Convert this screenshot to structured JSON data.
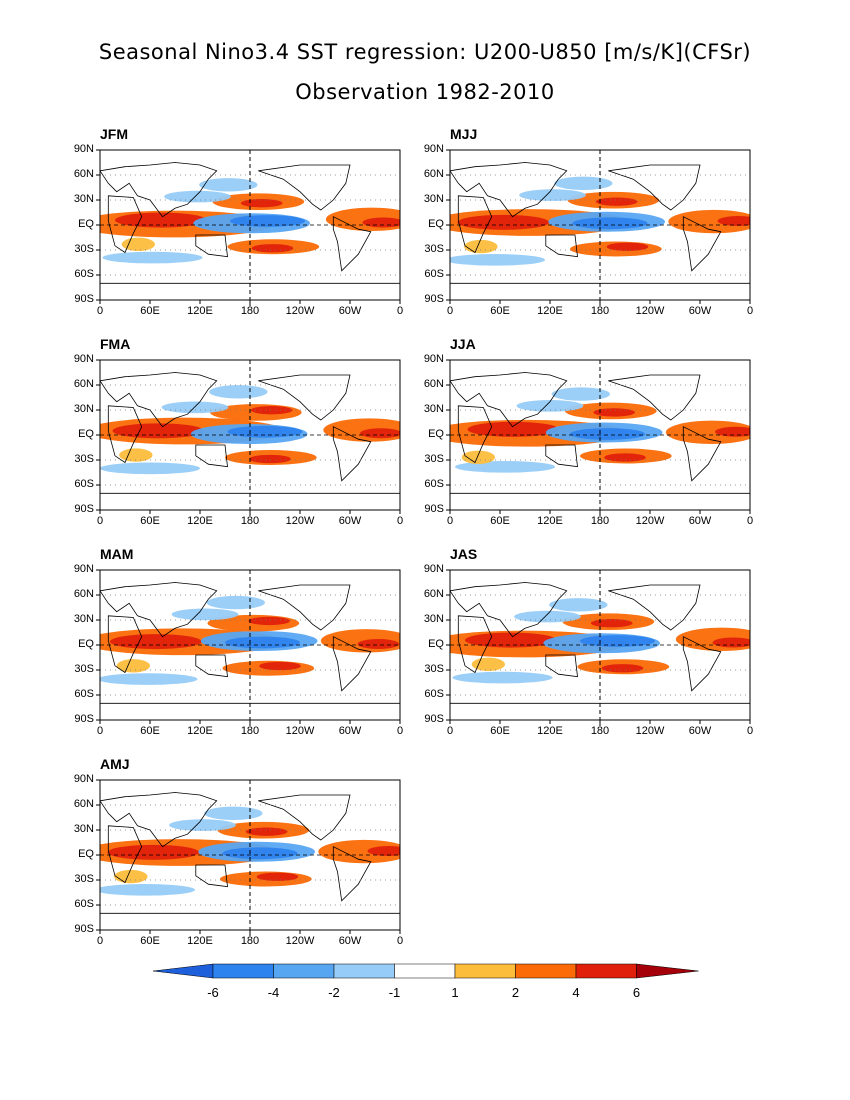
{
  "title_line1": "Seasonal Nino3.4 SST regression: U200-U850 [m/s/K](CFSr)",
  "title_line2": "Observation 1982-2010",
  "chart_data": {
    "type": "heatmap",
    "description_units": "m/s/K",
    "panels": [
      {
        "label": "JFM"
      },
      {
        "label": "MJJ"
      },
      {
        "label": "FMA"
      },
      {
        "label": "JJA"
      },
      {
        "label": "MAM"
      },
      {
        "label": "JAS"
      },
      {
        "label": "AMJ"
      }
    ],
    "lat_ticks": [
      "90N",
      "60N",
      "30N",
      "EQ",
      "30S",
      "60S",
      "90S"
    ],
    "lon_ticks": [
      "0",
      "60E",
      "120E",
      "180",
      "120W",
      "60W",
      "0"
    ],
    "lat_range": [
      -90,
      90
    ],
    "lon_range": [
      0,
      360
    ],
    "colorbar": {
      "levels": [
        -6,
        -4,
        -2,
        -1,
        1,
        2,
        4,
        6
      ],
      "labels": [
        "-6",
        "-4",
        "-2",
        "-1",
        "1",
        "2",
        "4",
        "6"
      ],
      "colors": [
        "#1e5fdc",
        "#2e83ee",
        "#57a6f2",
        "#96ccf8",
        "#ffffff",
        "#fdbd3c",
        "#fb6a06",
        "#e0200a",
        "#a5000a"
      ]
    }
  }
}
